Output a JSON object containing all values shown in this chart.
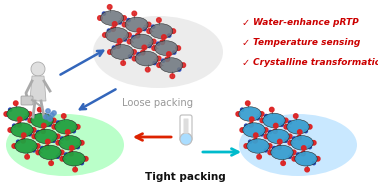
{
  "background_color": "#ffffff",
  "title_loose": "Loose packing",
  "title_tight": "Tight packing",
  "checklist": [
    "Water-enhance pRTP",
    "Temperature sensing",
    "Crystalline transformation"
  ],
  "check_color": "#cc0000",
  "text_color_gray": "#999999",
  "text_color_black": "#111111",
  "crystal_gray_color": "#707880",
  "crystal_green_color": "#22a040",
  "crystal_blue_color": "#3a9fd0",
  "dot_red": "#dd2222",
  "dot_blue": "#2244bb",
  "dot_white": "#ffffff",
  "glow_green": "#66ff88",
  "glow_blue": "#88ccff",
  "arrow_red": "#dd2200",
  "arrow_cyan": "#00bbcc",
  "arrow_blue_main": "#3366bb",
  "loose_glow": "#cccccc",
  "figure_width": 3.78,
  "figure_height": 1.86,
  "dpi": 100
}
